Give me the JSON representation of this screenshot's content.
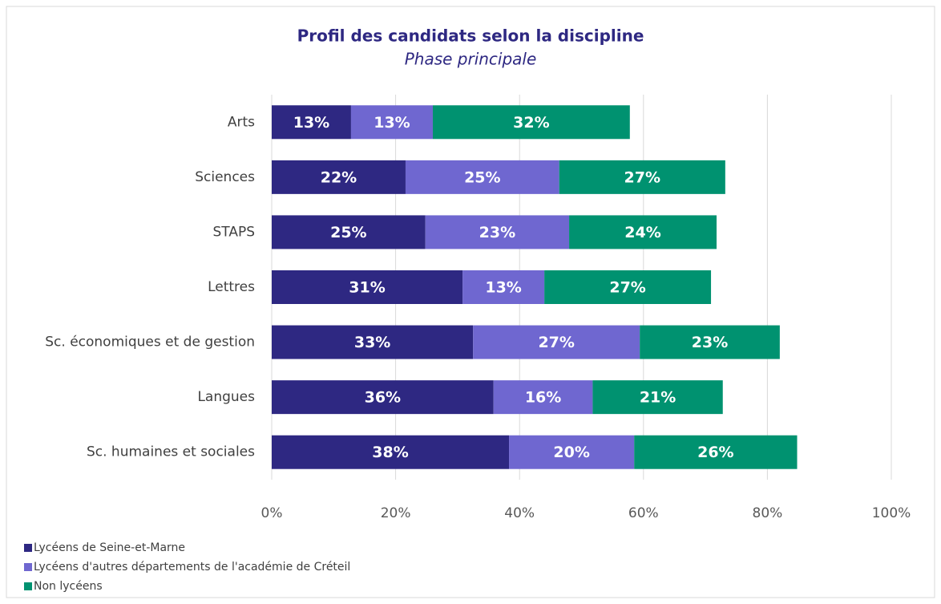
{
  "chart_data": {
    "type": "stacked-bar-horizontal",
    "title": "Profil des candidats selon la discipline",
    "subtitle": "Phase principale",
    "categories": [
      "Arts",
      "Sciences",
      "STAPS",
      "Lettres",
      "Sc. économiques et de gestion",
      "Langues",
      "Sc. humaines et sociales"
    ],
    "series": [
      {
        "name": "Lycéens de Seine-et-Marne",
        "color": "#2e2882",
        "values": [
          12.8,
          21.6,
          24.8,
          30.8,
          32.5,
          35.8,
          38.3
        ],
        "value_labels": [
          "13%",
          "22%",
          "25%",
          "31%",
          "33%",
          "36%",
          "38%"
        ]
      },
      {
        "name": "Lycéens d'autres départements de l'académie de Créteil",
        "color": "#6f67d0",
        "values": [
          13.2,
          24.8,
          23.2,
          13.2,
          26.9,
          16.0,
          20.2
        ],
        "value_labels": [
          "13%",
          "25%",
          "23%",
          "13%",
          "27%",
          "16%",
          "20%"
        ]
      },
      {
        "name": "Non lycéens",
        "color": "#009270",
        "values": [
          31.8,
          26.8,
          23.8,
          26.9,
          22.6,
          21,
          26.3
        ],
        "value_labels": [
          "32%",
          "27%",
          "24%",
          "27%",
          "23%",
          "21%",
          "26%"
        ]
      }
    ],
    "xlim": [
      0,
      100
    ],
    "xticks": [
      {
        "value": 0,
        "label": "0%"
      },
      {
        "value": 20,
        "label": "20%"
      },
      {
        "value": 40,
        "label": "40%"
      },
      {
        "value": 60,
        "label": "60%"
      },
      {
        "value": 80,
        "label": "80%"
      },
      {
        "value": 100,
        "label": "100%"
      }
    ],
    "grid": true,
    "legend": "bottom-left"
  }
}
